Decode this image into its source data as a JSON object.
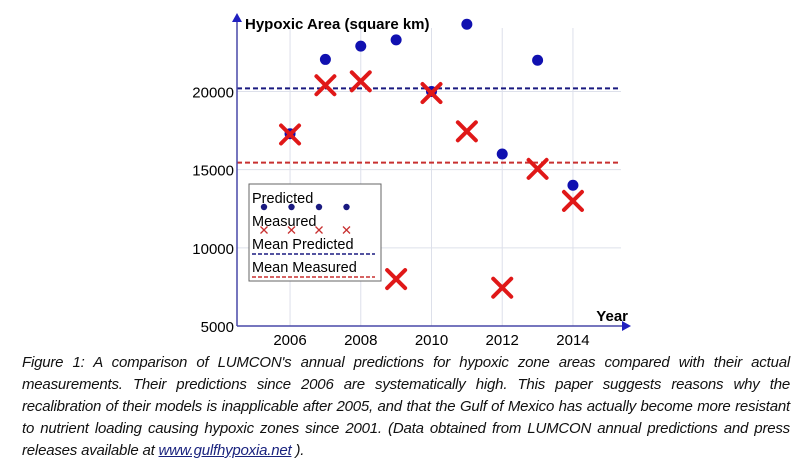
{
  "chart_data": {
    "type": "scatter",
    "title": "",
    "ylabel": "Hypoxic Area (square km)",
    "xlabel": "Year",
    "xlim": [
      2004.5,
      2015.5
    ],
    "ylim": [
      5000,
      24700
    ],
    "xticks": [
      2006,
      2008,
      2010,
      2012,
      2014
    ],
    "yticks": [
      5000,
      10000,
      15000,
      20000
    ],
    "grid": true,
    "legend_position": "lower-left",
    "series": [
      {
        "name": "Predicted",
        "marker": "dot",
        "color": "#1010b0",
        "x": [
          2006,
          2007,
          2008,
          2009,
          2010,
          2011,
          2012,
          2013,
          2014
        ],
        "y": [
          17300,
          22050,
          22900,
          23300,
          20000,
          24300,
          16000,
          22000,
          14000
        ]
      },
      {
        "name": "Measured",
        "marker": "x",
        "color": "#e01818",
        "x": [
          2006,
          2007,
          2008,
          2009,
          2010,
          2011,
          2012,
          2013,
          2014
        ],
        "y": [
          17250,
          20400,
          20650,
          8000,
          19900,
          17450,
          7450,
          15050,
          13000
        ]
      }
    ],
    "hlines": [
      {
        "name": "Mean Predicted",
        "y": 20200,
        "color": "#1a1a80"
      },
      {
        "name": "Mean Measured",
        "y": 15450,
        "color": "#c83030"
      }
    ]
  },
  "caption": {
    "text": "Figure 1:  A comparison of LUMCON's annual predictions for hypoxic zone areas compared with their actual measurements.  Their predictions since 2006 are systematically high.  This paper suggests reasons why the recalibration of their models is inapplicable after 2005, and that the Gulf of Mexico has actually become more resistant to nutrient loading causing hypoxic zones since 2001. (Data obtained from LUMCON annual predictions and press releases available at ",
    "link": "www.gulfhypoxia.net",
    "tail": " )."
  }
}
